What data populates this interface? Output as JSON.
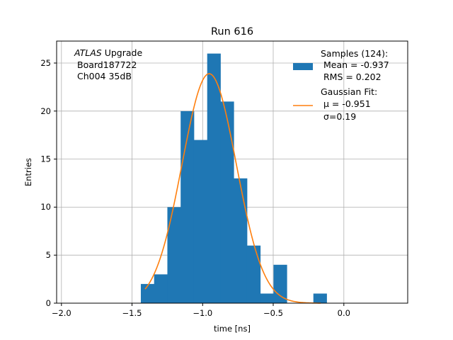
{
  "chart_data": {
    "type": "bar",
    "title": "Run 616",
    "xlabel": "time [ns]",
    "ylabel": "Entries",
    "xlim": [
      -2.02,
      0.44
    ],
    "ylim": [
      0,
      27.3
    ],
    "grid": true,
    "x_ticks": [
      -2.0,
      -1.5,
      -1.0,
      -0.5,
      0.0
    ],
    "x_tick_labels": [
      "−2.0",
      "−1.5",
      "−1.0",
      "−0.5",
      "0.0"
    ],
    "y_ticks": [
      0,
      5,
      10,
      15,
      20,
      25
    ],
    "y_tick_labels": [
      "0",
      "5",
      "10",
      "15",
      "20",
      "25"
    ],
    "histogram": {
      "name": "Samples (124):",
      "color": "#1f77b4",
      "bin_edges": [
        -1.43,
        -1.337,
        -1.244,
        -1.151,
        -1.058,
        -0.965,
        -0.872,
        -0.779,
        -0.686,
        -0.593,
        -0.5,
        -0.407,
        -0.314,
        -0.221,
        -0.128
      ],
      "counts": [
        2,
        3,
        10,
        20,
        17,
        26,
        21,
        13,
        6,
        1,
        4,
        0,
        0,
        1
      ]
    },
    "fit": {
      "name": "Gaussian Fit:",
      "color": "#ff7f0e",
      "mu": -0.951,
      "sigma": 0.19,
      "peak": 23.9,
      "x_range": [
        -1.4,
        -0.17
      ]
    },
    "legend": {
      "placement": "top-right",
      "hist_lines": [
        "Samples (124):",
        " Mean = -0.937",
        " RMS = 0.202"
      ],
      "fit_lines": [
        "Gaussian Fit:",
        " μ = -0.951",
        " σ=0.19"
      ]
    },
    "annotation": {
      "atlas": "ATLAS",
      "upgrade": " Upgrade",
      "board": "Board187722",
      "channel": "Ch004 35dB"
    }
  }
}
